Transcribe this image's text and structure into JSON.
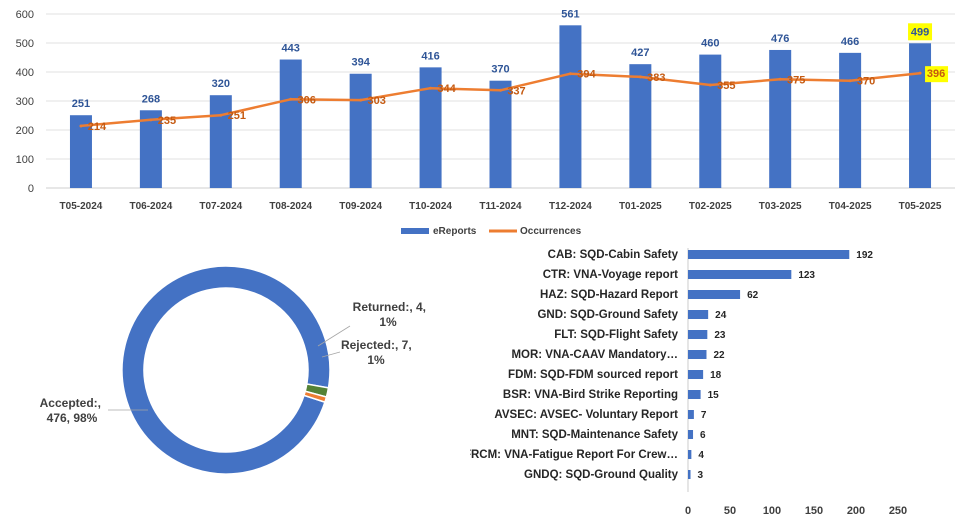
{
  "colors": {
    "bar": "#4472C4",
    "line": "#ED7D31",
    "label_blue": "#2F5597",
    "label_orange": "#C55A11",
    "highlight": "#FFFF00",
    "accepted": "#4472C4",
    "rejected": "#548235",
    "returned": "#ED7D31",
    "axis_text": "#404040",
    "grid": "#d9d9d9"
  },
  "chart_data": [
    {
      "type": "bar",
      "categories": [
        "T05-2024",
        "T06-2024",
        "T07-2024",
        "T08-2024",
        "T09-2024",
        "T10-2024",
        "T11-2024",
        "T12-2024",
        "T01-2025",
        "T02-2025",
        "T03-2025",
        "T04-2025",
        "T05-2025"
      ],
      "series": [
        {
          "name": "eReports",
          "type": "bar",
          "values": [
            251,
            268,
            320,
            443,
            394,
            416,
            370,
            561,
            427,
            460,
            476,
            466,
            499
          ]
        },
        {
          "name": "Occurrences",
          "type": "line",
          "values": [
            214,
            235,
            251,
            306,
            303,
            344,
            337,
            394,
            383,
            355,
            375,
            370,
            396
          ]
        }
      ],
      "ylim": [
        0,
        600
      ],
      "yticks": [
        0,
        100,
        200,
        300,
        400,
        500,
        600
      ],
      "legend": "bottom",
      "highlighted_labels": [
        "499",
        "396"
      ]
    },
    {
      "type": "pie",
      "donut": true,
      "slices": [
        {
          "name": "Accepted:",
          "value": 476,
          "percent": "98%",
          "label": [
            "Accepted:,",
            "476, 98%"
          ]
        },
        {
          "name": "Rejected:",
          "value": 7,
          "percent": "1%",
          "label": [
            "Rejected:, 7,",
            "1%"
          ]
        },
        {
          "name": "Returned:",
          "value": 4,
          "percent": "1%",
          "label": [
            "Returned:,  4,",
            "1%"
          ]
        }
      ]
    },
    {
      "type": "bar",
      "orientation": "horizontal",
      "categories": [
        "CAB: SQD-Cabin Safety",
        "CTR: VNA-Voyage report",
        "HAZ: SQD-Hazard Report",
        "GND: SQD-Ground Safety",
        "FLT: SQD-Flight Safety",
        "MOR: VNA-CAAV Mandatory…",
        "FDM: SQD-FDM sourced report",
        "BSR: VNA-Bird Strike Reporting",
        "AVSEC: AVSEC- Voluntary Report",
        "MNT: SQD-Maintenance Safety",
        "FRCM: VNA-Fatigue Report For Crew…",
        "GNDQ: SQD-Ground Quality"
      ],
      "values": [
        192,
        123,
        62,
        24,
        23,
        22,
        18,
        15,
        7,
        6,
        4,
        3
      ],
      "xlim": [
        0,
        250
      ],
      "xticks": [
        0,
        50,
        100,
        150,
        200,
        250
      ]
    }
  ]
}
